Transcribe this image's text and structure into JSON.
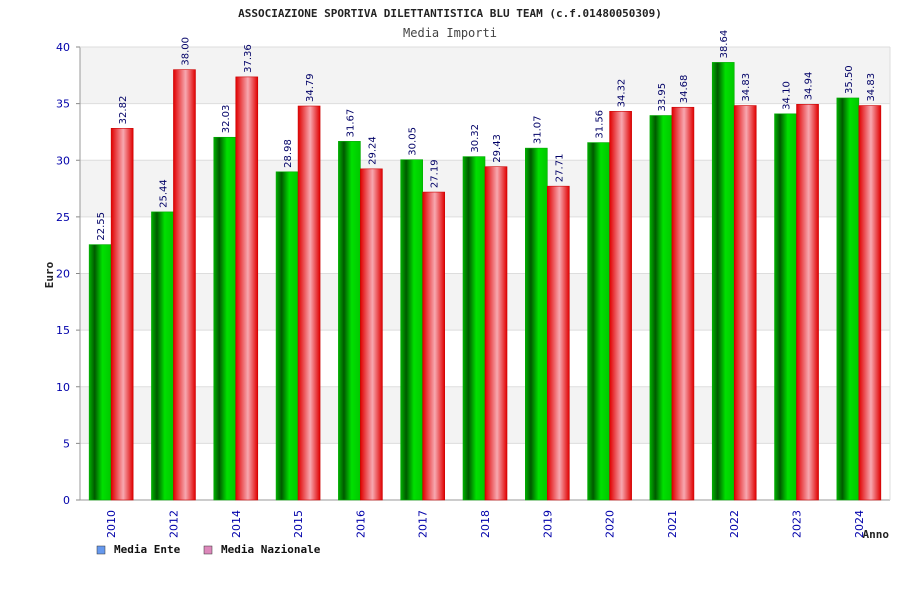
{
  "chart_data": {
    "type": "bar",
    "title": "ASSOCIAZIONE SPORTIVA DILETTANTISTICA BLU TEAM (c.f.01480050309)",
    "subtitle": "Media Importi",
    "xlabel": "Anno",
    "ylabel": "Euro",
    "ylim": [
      0,
      40
    ],
    "yticks": [
      "0",
      "5",
      "10",
      "15",
      "20",
      "25",
      "30",
      "35",
      "40"
    ],
    "grid": true,
    "legend_position": "bottom-left",
    "categories": [
      "2010",
      "2012",
      "2014",
      "2015",
      "2016",
      "2017",
      "2018",
      "2019",
      "2020",
      "2021",
      "2022",
      "2023",
      "2024"
    ],
    "series": [
      {
        "name": "Media Ente",
        "color": "#00cc00",
        "legend_color": "#6699ee",
        "values": [
          22.55,
          25.44,
          32.03,
          28.98,
          31.67,
          30.05,
          30.32,
          31.07,
          31.56,
          33.95,
          38.64,
          34.1,
          35.5
        ],
        "labels": [
          "22.55",
          "25.44",
          "32.03",
          "28.98",
          "31.67",
          "30.05",
          "30.32",
          "31.07",
          "31.56",
          "33.95",
          "38.64",
          "34.10",
          "35.50"
        ]
      },
      {
        "name": "Media Nazionale",
        "color": "#ee0000",
        "legend_color": "#dd88bb",
        "values": [
          32.82,
          38.0,
          37.36,
          34.79,
          29.24,
          27.19,
          29.43,
          27.71,
          34.32,
          34.68,
          34.83,
          34.94,
          34.83
        ],
        "labels": [
          "32.82",
          "38.00",
          "37.36",
          "34.79",
          "29.24",
          "27.19",
          "29.43",
          "27.71",
          "34.32",
          "34.68",
          "34.83",
          "34.94",
          "34.83"
        ]
      }
    ]
  }
}
